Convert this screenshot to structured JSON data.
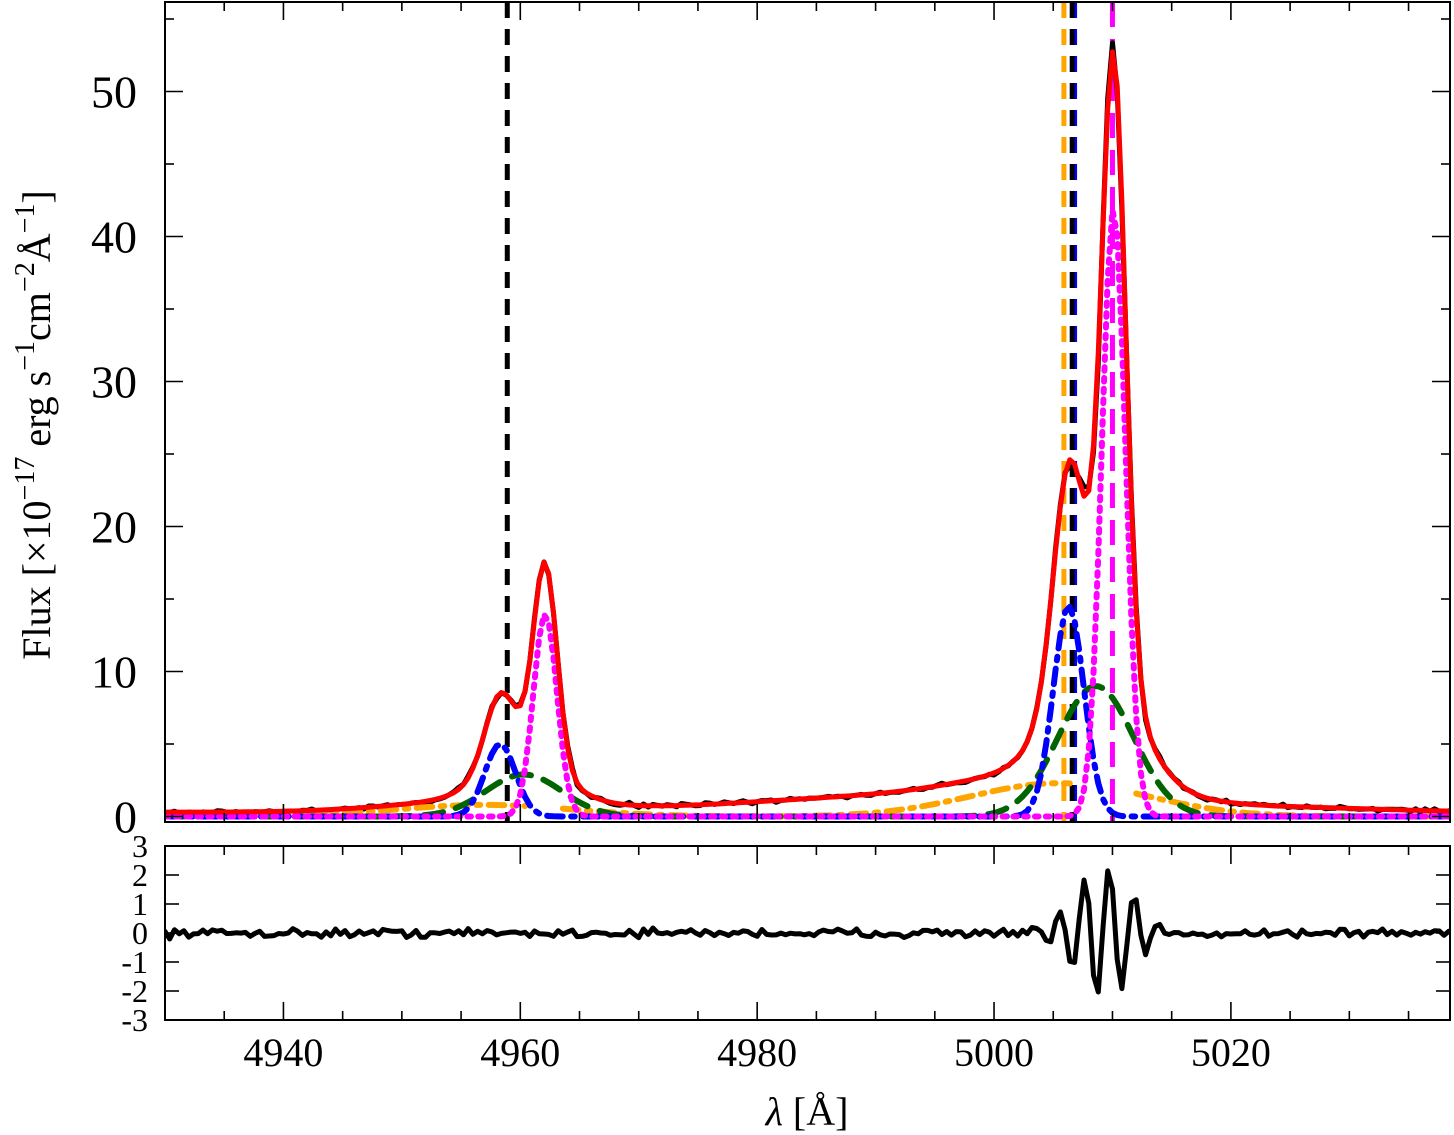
{
  "chart_data": {
    "type": "line",
    "panels": [
      {
        "id": "spectrum",
        "ylabel_parts": {
          "prefix": "Flux [×10",
          "exp1": "−17",
          "erg_s": " erg s",
          "exp2": "−1",
          "cm": "cm",
          "exp3": "−2",
          "angstrom": "Å",
          "exp4": "−1",
          "suffix": "]"
        },
        "xlim": [
          4930,
          5038.5
        ],
        "ylim": [
          -0.5,
          56
        ],
        "yticks_major": [
          0,
          10,
          20,
          30,
          40,
          50
        ],
        "yticks_minor_step": 5,
        "series": [
          {
            "key": "observed",
            "color": "#000000",
            "width": 5,
            "dash": "none"
          },
          {
            "key": "total_fit",
            "color": "#ff0000",
            "width": 5,
            "dash": "none"
          },
          {
            "key": "narrow",
            "color": "#ff00ff",
            "width": 6,
            "dash": "dotted"
          },
          {
            "key": "wing_blue",
            "color": "#0000ff",
            "width": 6,
            "dash": "dashdot"
          },
          {
            "key": "broad_green",
            "color": "#006400",
            "width": 6,
            "dash": "dashed"
          },
          {
            "key": "very_broad_orange",
            "color": "#ffa500",
            "width": 6,
            "dash": "dashdot"
          }
        ],
        "components": {
          "observed_continuum": 0.3,
          "narrow": [
            {
              "center": 4962.1,
              "amp": 14.0,
              "sigma": 1.0
            },
            {
              "center": 5010.1,
              "amp": 42.0,
              "sigma": 1.0
            }
          ],
          "wing_blue": [
            {
              "center": 4958.3,
              "amp": 5.0,
              "sigma": 1.3
            },
            {
              "center": 5006.3,
              "amp": 14.5,
              "sigma": 1.3
            }
          ],
          "broad_green": [
            {
              "center": 4960.3,
              "amp": 2.9,
              "sigma": 3.2
            },
            {
              "center": 5008.6,
              "amp": 9.0,
              "sigma": 3.2
            }
          ],
          "very_broad_orange": [
            {
              "center": 4957.0,
              "amp": 0.8,
              "sigma": 7.5
            },
            {
              "center": 5005.5,
              "amp": 2.3,
              "sigma": 7.5
            }
          ],
          "very_broad_gaps": [
            [
              4960.6,
              4963.4
            ],
            [
              5006.4,
              5011.8
            ]
          ],
          "broad_cutoff": 4.5
        },
        "vertical_lines": [
          {
            "x": 4958.9,
            "color": "#000000",
            "dash": "dashed"
          },
          {
            "x": 5005.9,
            "color": "#ffa500",
            "dash": "dashed"
          },
          {
            "x": 5006.8,
            "color": "#0000ff",
            "dash": "dashed"
          },
          {
            "x": 5006.6,
            "color": "#000000",
            "dash": "dashed"
          },
          {
            "x": 5010.0,
            "color": "#ff00ff",
            "dash": "longdash"
          }
        ]
      },
      {
        "id": "residuals",
        "ylim": [
          -3,
          3
        ],
        "ytick_labels": [
          "3",
          "2",
          "1",
          "0",
          "-1",
          "-2",
          "-3"
        ],
        "residual_oscillation": {
          "center": 5009.2,
          "width": 2.4,
          "period": 2.1,
          "amp": 2.3
        }
      }
    ],
    "x_tick_labels": [
      "4940",
      "4960",
      "4980",
      "5000",
      "5020"
    ],
    "x_major": [
      4940,
      4960,
      4980,
      5000,
      5020
    ],
    "x_minor_step": 5,
    "xlabel_symbol": "λ",
    "xlabel_unit": " [Å]"
  }
}
